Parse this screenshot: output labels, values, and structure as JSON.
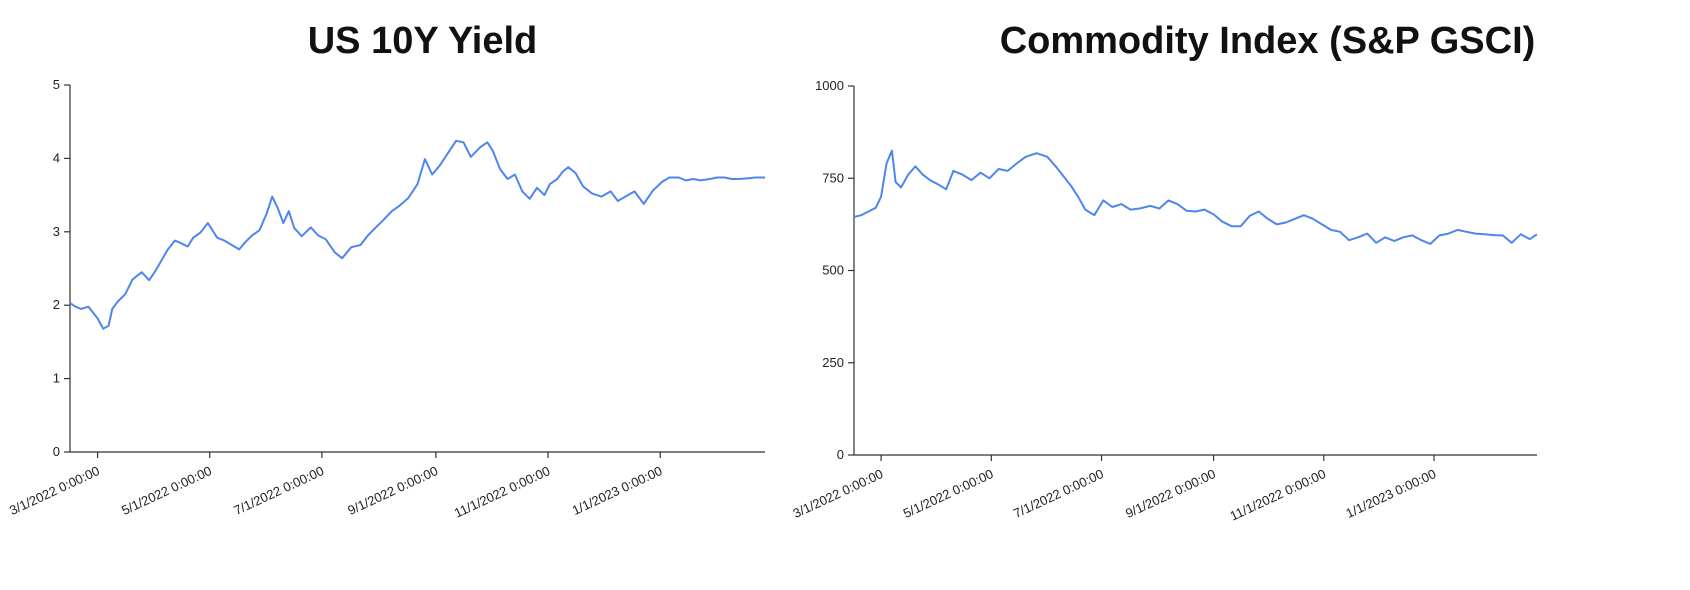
{
  "colors": {
    "line": "#4f86ec",
    "axis": "#333333",
    "title": "#111111"
  },
  "chart_data": [
    {
      "type": "line",
      "title": "US 10Y Yield",
      "xlabel": "",
      "ylabel": "",
      "xlim": [
        "2022-02-14",
        "2023-02-27"
      ],
      "ylim": [
        0,
        5
      ],
      "yticks": [
        0,
        1,
        2,
        3,
        4,
        5
      ],
      "xticks": [
        "2022-03-01",
        "2022-05-01",
        "2022-07-01",
        "2022-09-01",
        "2022-11-01",
        "2023-01-01"
      ],
      "xtick_labels": [
        "3/1/2022 0:00:00",
        "5/1/2022 0:00:00",
        "7/1/2022 0:00:00",
        "9/1/2022 0:00:00",
        "11/1/2022 0:00:00",
        "1/1/2023 0:00:00"
      ],
      "grid": false,
      "series": [
        {
          "x": [
            "2022-02-14",
            "2022-02-17",
            "2022-02-20",
            "2022-02-24",
            "2022-03-01",
            "2022-03-04",
            "2022-03-07",
            "2022-03-09",
            "2022-03-12",
            "2022-03-16",
            "2022-03-20",
            "2022-03-25",
            "2022-03-29",
            "2022-04-01",
            "2022-04-05",
            "2022-04-08",
            "2022-04-12",
            "2022-04-15",
            "2022-04-19",
            "2022-04-22",
            "2022-04-26",
            "2022-04-30",
            "2022-05-05",
            "2022-05-09",
            "2022-05-13",
            "2022-05-17",
            "2022-05-20",
            "2022-05-24",
            "2022-05-28",
            "2022-06-01",
            "2022-06-04",
            "2022-06-07",
            "2022-06-10",
            "2022-06-13",
            "2022-06-16",
            "2022-06-20",
            "2022-06-25",
            "2022-06-29",
            "2022-07-03",
            "2022-07-08",
            "2022-07-12",
            "2022-07-17",
            "2022-07-22",
            "2022-07-26",
            "2022-07-30",
            "2022-08-03",
            "2022-08-08",
            "2022-08-12",
            "2022-08-17",
            "2022-08-22",
            "2022-08-26",
            "2022-08-30",
            "2022-09-03",
            "2022-09-07",
            "2022-09-12",
            "2022-09-16",
            "2022-09-20",
            "2022-09-25",
            "2022-09-29",
            "2022-10-02",
            "2022-10-06",
            "2022-10-10",
            "2022-10-14",
            "2022-10-18",
            "2022-10-22",
            "2022-10-26",
            "2022-10-30",
            "2022-11-02",
            "2022-11-06",
            "2022-11-09",
            "2022-11-12",
            "2022-11-16",
            "2022-11-20",
            "2022-11-25",
            "2022-11-30",
            "2022-12-05",
            "2022-12-09",
            "2022-12-13",
            "2022-12-18",
            "2022-12-23",
            "2022-12-28",
            "2023-01-02",
            "2023-01-06",
            "2023-01-11",
            "2023-01-15",
            "2023-01-19",
            "2023-01-23",
            "2023-01-28",
            "2023-02-01",
            "2023-02-05",
            "2023-02-09",
            "2023-02-13",
            "2023-02-18",
            "2023-02-22",
            "2023-02-27"
          ],
          "values": [
            2.03,
            1.98,
            1.95,
            1.98,
            1.82,
            1.68,
            1.72,
            1.95,
            2.05,
            2.15,
            2.35,
            2.45,
            2.34,
            2.45,
            2.62,
            2.75,
            2.88,
            2.85,
            2.8,
            2.92,
            2.99,
            3.12,
            2.92,
            2.88,
            2.82,
            2.76,
            2.85,
            2.95,
            3.02,
            3.25,
            3.48,
            3.32,
            3.12,
            3.28,
            3.05,
            2.94,
            3.06,
            2.95,
            2.9,
            2.72,
            2.64,
            2.79,
            2.82,
            2.95,
            3.05,
            3.15,
            3.28,
            3.35,
            3.46,
            3.65,
            3.99,
            3.78,
            3.9,
            4.05,
            4.24,
            4.22,
            4.02,
            4.15,
            4.22,
            4.1,
            3.85,
            3.72,
            3.78,
            3.55,
            3.45,
            3.6,
            3.5,
            3.65,
            3.72,
            3.82,
            3.88,
            3.8,
            3.62,
            3.52,
            3.48,
            3.55,
            3.42,
            3.48,
            3.55,
            3.38,
            3.56,
            3.68,
            3.74,
            3.74,
            3.7,
            3.72,
            3.7,
            3.72,
            3.74,
            3.74,
            3.72,
            3.72,
            3.73,
            3.74,
            3.74
          ]
        }
      ]
    },
    {
      "type": "line",
      "title": "Commodity Index (S&P GSCI)",
      "xlabel": "",
      "ylabel": "",
      "xlim": [
        "2022-02-14",
        "2023-02-27"
      ],
      "ylim": [
        0,
        1000
      ],
      "yticks": [
        0,
        250,
        500,
        750,
        1000
      ],
      "xticks": [
        "2022-03-01",
        "2022-05-01",
        "2022-07-01",
        "2022-09-01",
        "2022-11-01",
        "2023-01-01"
      ],
      "xtick_labels": [
        "3/1/2022 0:00:00",
        "5/1/2022 0:00:00",
        "7/1/2022 0:00:00",
        "9/1/2022 0:00:00",
        "11/1/2022 0:00:00",
        "1/1/2023 0:00:00"
      ],
      "grid": false,
      "series": [
        {
          "x": [
            "2022-02-14",
            "2022-02-18",
            "2022-02-22",
            "2022-02-26",
            "2022-03-01",
            "2022-03-04",
            "2022-03-07",
            "2022-03-09",
            "2022-03-12",
            "2022-03-16",
            "2022-03-20",
            "2022-03-24",
            "2022-03-28",
            "2022-04-01",
            "2022-04-06",
            "2022-04-10",
            "2022-04-15",
            "2022-04-20",
            "2022-04-25",
            "2022-04-30",
            "2022-05-05",
            "2022-05-10",
            "2022-05-15",
            "2022-05-20",
            "2022-05-26",
            "2022-06-01",
            "2022-06-06",
            "2022-06-10",
            "2022-06-14",
            "2022-06-18",
            "2022-06-22",
            "2022-06-27",
            "2022-07-02",
            "2022-07-07",
            "2022-07-12",
            "2022-07-17",
            "2022-07-22",
            "2022-07-28",
            "2022-08-02",
            "2022-08-07",
            "2022-08-12",
            "2022-08-17",
            "2022-08-22",
            "2022-08-27",
            "2022-09-01",
            "2022-09-06",
            "2022-09-11",
            "2022-09-16",
            "2022-09-21",
            "2022-09-26",
            "2022-10-01",
            "2022-10-06",
            "2022-10-11",
            "2022-10-16",
            "2022-10-21",
            "2022-10-26",
            "2022-10-31",
            "2022-11-05",
            "2022-11-10",
            "2022-11-15",
            "2022-11-20",
            "2022-11-25",
            "2022-11-30",
            "2022-12-05",
            "2022-12-10",
            "2022-12-15",
            "2022-12-20",
            "2022-12-25",
            "2022-12-30",
            "2023-01-04",
            "2023-01-09",
            "2023-01-14",
            "2023-01-19",
            "2023-01-24",
            "2023-01-29",
            "2023-02-03",
            "2023-02-08",
            "2023-02-13",
            "2023-02-18",
            "2023-02-23",
            "2023-02-27"
          ],
          "values": [
            645,
            650,
            660,
            670,
            700,
            790,
            825,
            740,
            725,
            760,
            782,
            760,
            745,
            735,
            720,
            770,
            760,
            745,
            765,
            750,
            775,
            770,
            790,
            808,
            818,
            808,
            780,
            755,
            730,
            700,
            665,
            650,
            690,
            672,
            680,
            665,
            668,
            675,
            668,
            690,
            680,
            662,
            660,
            665,
            652,
            632,
            620,
            620,
            648,
            660,
            640,
            625,
            630,
            640,
            650,
            640,
            625,
            610,
            605,
            582,
            590,
            600,
            575,
            590,
            580,
            590,
            595,
            582,
            572,
            595,
            600,
            610,
            605,
            600,
            598,
            596,
            595,
            575,
            598,
            585,
            598
          ]
        }
      ]
    }
  ]
}
